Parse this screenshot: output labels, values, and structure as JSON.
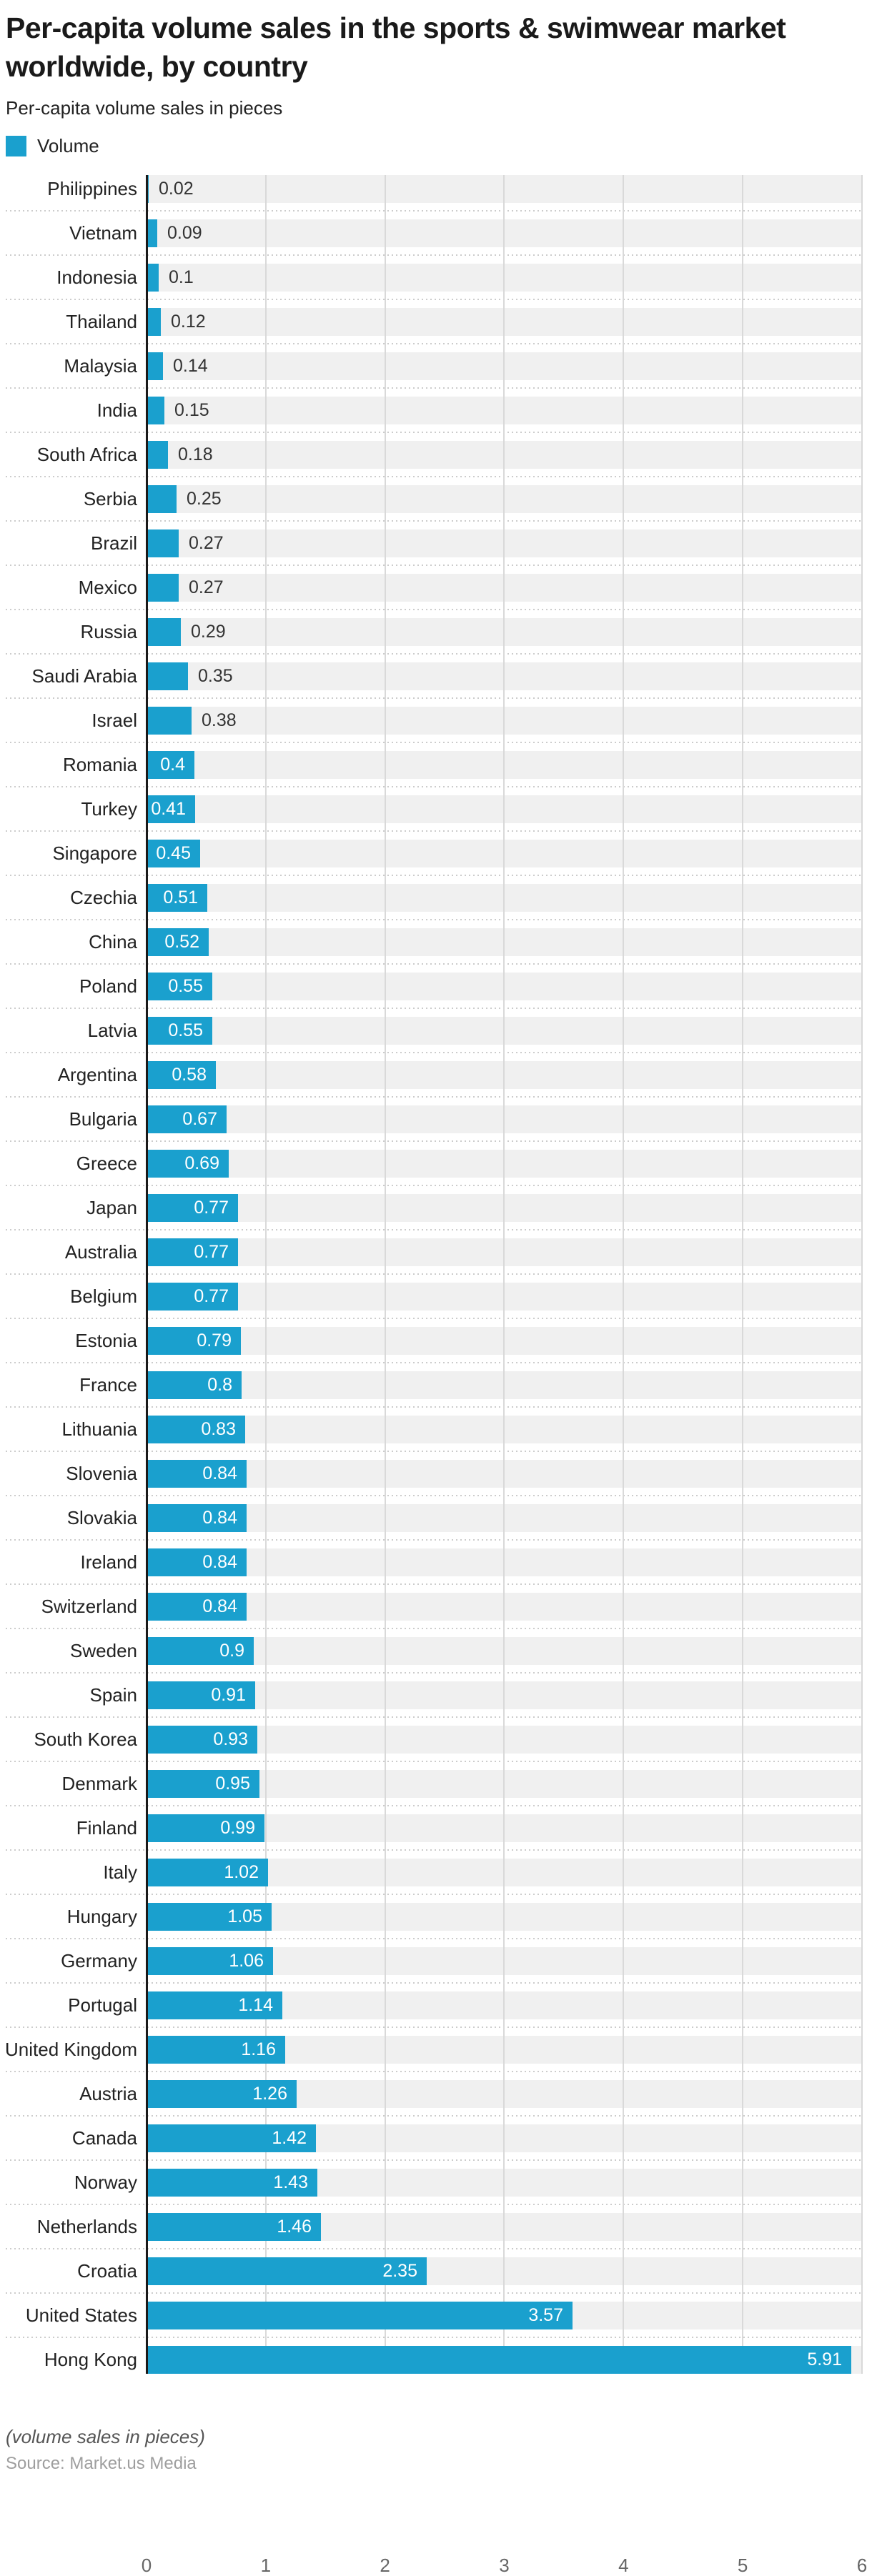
{
  "title": {
    "line1": "Per-capita volume sales in the sports & swimwear market",
    "line2": "worldwide, by country"
  },
  "subtitle": "Per-capita volume sales in pieces",
  "legend": {
    "label": "Volume",
    "color": "#1aa0ce"
  },
  "chart_data": {
    "type": "bar",
    "orientation": "horizontal",
    "series_name": "Volume",
    "categories": [
      "Philippines",
      "Vietnam",
      "Indonesia",
      "Thailand",
      "Malaysia",
      "India",
      "South Africa",
      "Serbia",
      "Brazil",
      "Mexico",
      "Russia",
      "Saudi Arabia",
      "Israel",
      "Romania",
      "Turkey",
      "Singapore",
      "Czechia",
      "China",
      "Poland",
      "Latvia",
      "Argentina",
      "Bulgaria",
      "Greece",
      "Japan",
      "Australia",
      "Belgium",
      "Estonia",
      "France",
      "Lithuania",
      "Slovenia",
      "Slovakia",
      "Ireland",
      "Switzerland",
      "Sweden",
      "Spain",
      "South Korea",
      "Denmark",
      "Finland",
      "Italy",
      "Hungary",
      "Germany",
      "Portugal",
      "United Kingdom",
      "Austria",
      "Canada",
      "Norway",
      "Netherlands",
      "Croatia",
      "United States",
      "Hong Kong"
    ],
    "values": [
      "0.02",
      "0.09",
      "0.1",
      "0.12",
      "0.14",
      "0.15",
      "0.18",
      "0.25",
      "0.27",
      "0.27",
      "0.29",
      "0.35",
      "0.38",
      "0.4",
      "0.41",
      "0.45",
      "0.51",
      "0.52",
      "0.55",
      "0.55",
      "0.58",
      "0.67",
      "0.69",
      "0.77",
      "0.77",
      "0.77",
      "0.79",
      "0.8",
      "0.83",
      "0.84",
      "0.84",
      "0.84",
      "0.84",
      "0.9",
      "0.91",
      "0.93",
      "0.95",
      "0.99",
      "1.02",
      "1.05",
      "1.06",
      "1.14",
      "1.16",
      "1.26",
      "1.42",
      "1.43",
      "1.46",
      "2.35",
      "3.57",
      "5.91"
    ],
    "xlim": [
      0,
      6
    ],
    "x_ticks": [
      "0",
      "1",
      "2",
      "3",
      "4",
      "5",
      "6"
    ],
    "grid": "vertical gridlines at integers, dotted row separators",
    "bar_color": "#1aa0ce",
    "track_color": "#f0f0f0",
    "inside_label_min_value": 0.4
  },
  "footer": {
    "note": "(volume sales in pieces)",
    "source": "Source: Market.us Media"
  }
}
